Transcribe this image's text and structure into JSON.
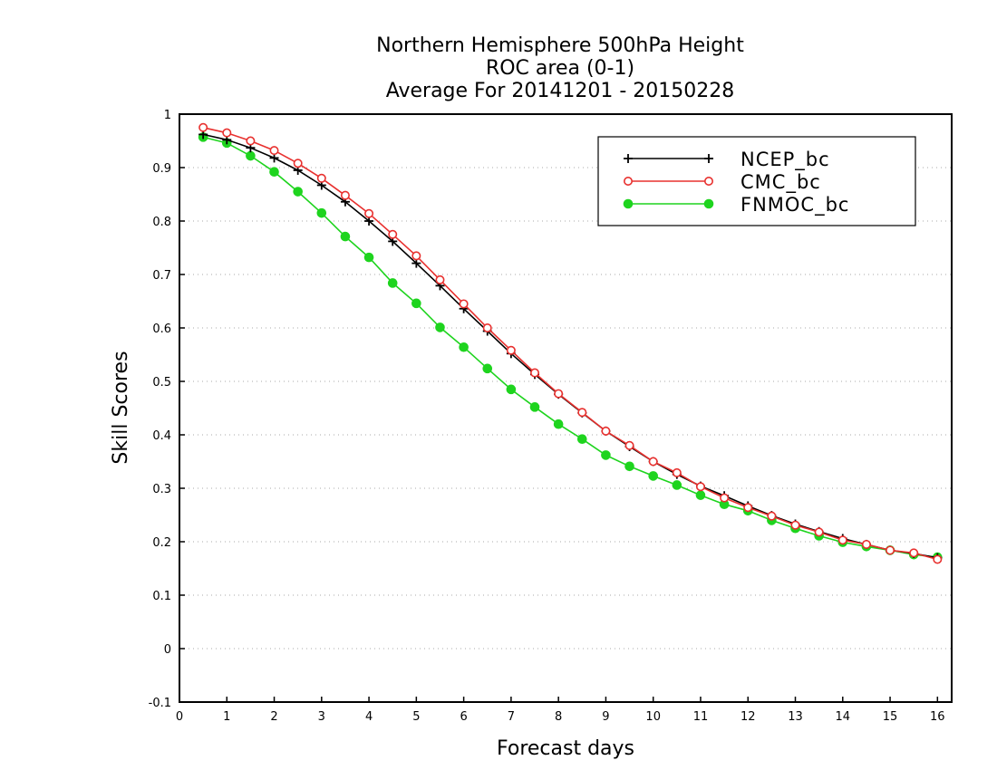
{
  "chart_data": {
    "type": "line",
    "title_lines": [
      "Northern Hemisphere 500hPa Height",
      "ROC area (0-1)",
      "Average For 20141201 - 20150228"
    ],
    "xlabel": "Forecast days",
    "ylabel": "Skill Scores",
    "xlim": [
      0,
      16.3
    ],
    "ylim": [
      -0.1,
      1
    ],
    "xticks": [
      "0",
      "1",
      "2",
      "3",
      "4",
      "5",
      "6",
      "7",
      "8",
      "9",
      "10",
      "11",
      "12",
      "13",
      "14",
      "15",
      "16"
    ],
    "yticks": [
      "-0.1",
      "0",
      "0.1",
      "0.2",
      "0.3",
      "0.4",
      "0.5",
      "0.6",
      "0.7",
      "0.8",
      "0.9",
      "1"
    ],
    "grid": "horizontal dotted",
    "legend_position": "top-right",
    "x": [
      0.5,
      1,
      1.5,
      2,
      2.5,
      3,
      3.5,
      4,
      4.5,
      5,
      5.5,
      6,
      6.5,
      7,
      7.5,
      8,
      8.5,
      9,
      9.5,
      10,
      10.5,
      11,
      11.5,
      12,
      12.5,
      13,
      13.5,
      14,
      14.5,
      15,
      15.5,
      16
    ],
    "series": [
      {
        "name": "NCEP_bc",
        "color": "#000000",
        "marker": "plus",
        "values": [
          0.962,
          0.952,
          0.937,
          0.918,
          0.895,
          0.867,
          0.836,
          0.8,
          0.762,
          0.721,
          0.679,
          0.636,
          0.594,
          0.552,
          0.513,
          0.476,
          0.441,
          0.407,
          0.378,
          0.35,
          0.326,
          0.304,
          0.286,
          0.267,
          0.249,
          0.233,
          0.219,
          0.206,
          0.195,
          0.184,
          0.178,
          0.17
        ]
      },
      {
        "name": "CMC_bc",
        "color": "#e8302e",
        "marker": "open-circle",
        "values": [
          0.975,
          0.965,
          0.95,
          0.932,
          0.908,
          0.88,
          0.848,
          0.814,
          0.775,
          0.735,
          0.69,
          0.645,
          0.6,
          0.558,
          0.516,
          0.477,
          0.442,
          0.407,
          0.38,
          0.35,
          0.329,
          0.303,
          0.282,
          0.264,
          0.248,
          0.231,
          0.218,
          0.203,
          0.195,
          0.184,
          0.179,
          0.167
        ]
      },
      {
        "name": "FNMOC_bc",
        "color": "#1ed41e",
        "marker": "filled-circle",
        "values": [
          0.957,
          0.946,
          0.922,
          0.892,
          0.855,
          0.815,
          0.771,
          0.732,
          0.684,
          0.646,
          0.601,
          0.564,
          0.524,
          0.485,
          0.452,
          0.42,
          0.392,
          0.362,
          0.341,
          0.323,
          0.306,
          0.287,
          0.27,
          0.258,
          0.24,
          0.225,
          0.211,
          0.199,
          0.191,
          0.184,
          0.176,
          0.171
        ]
      }
    ]
  }
}
